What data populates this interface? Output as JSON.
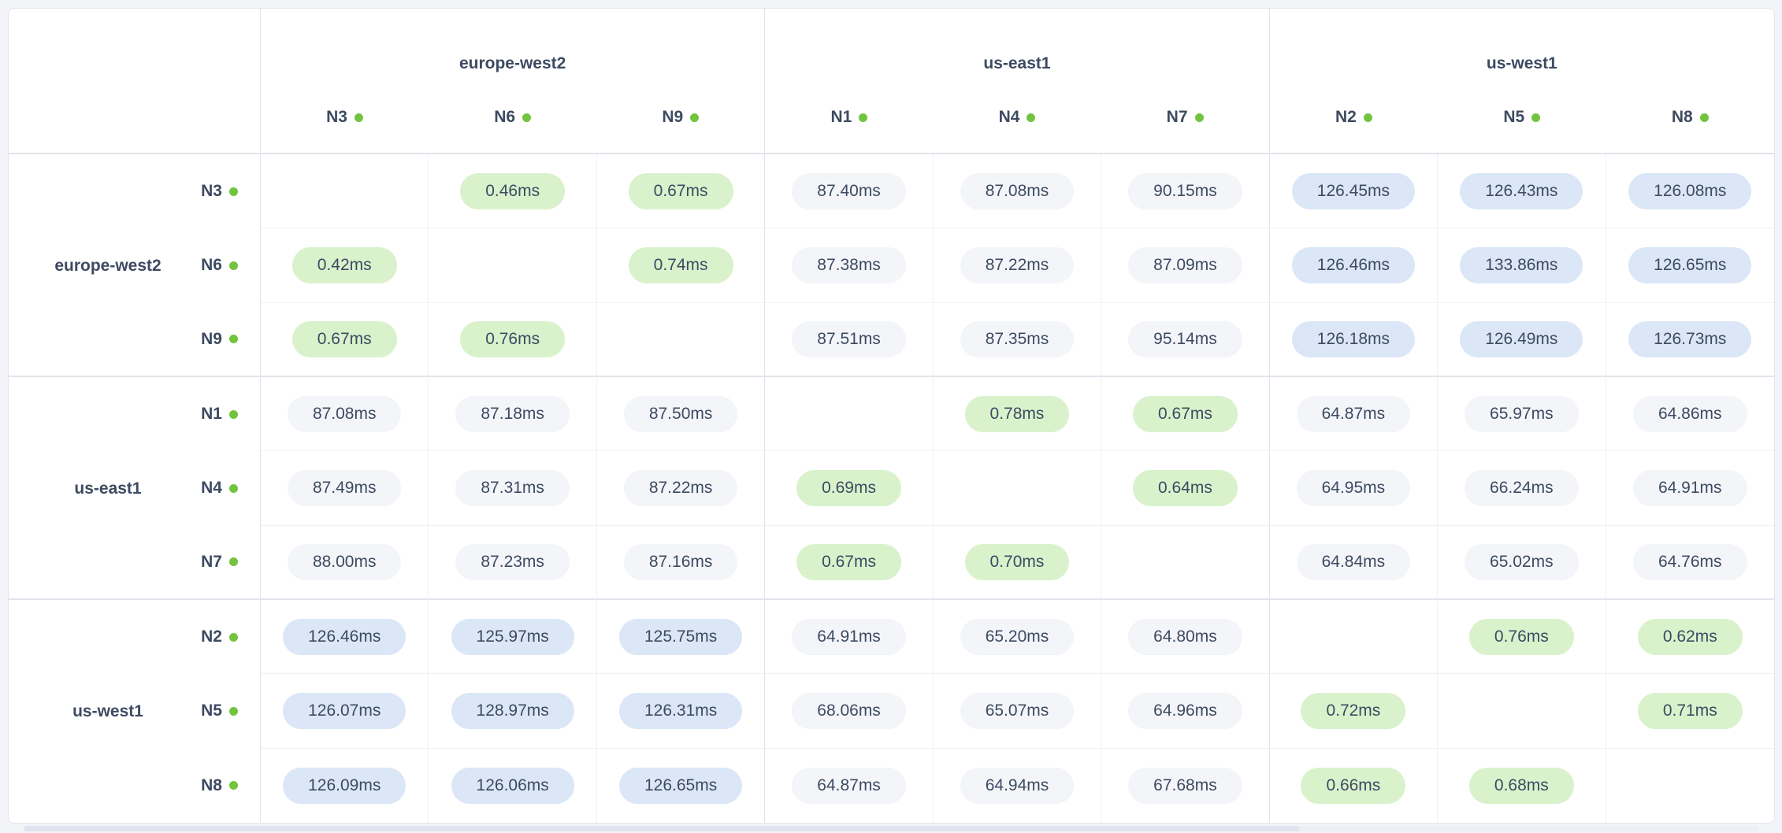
{
  "unit": "ms",
  "regions": [
    {
      "name": "europe-west2",
      "nodes": [
        "N3",
        "N6",
        "N9"
      ]
    },
    {
      "name": "us-east1",
      "nodes": [
        "N1",
        "N4",
        "N7"
      ]
    },
    {
      "name": "us-west1",
      "nodes": [
        "N2",
        "N5",
        "N8"
      ]
    }
  ],
  "icons": {
    "status_dot": "filled-circle"
  },
  "colors": {
    "page_bg": "#f3f4f8",
    "card_bg": "#ffffff",
    "border_light": "#f0f1f6",
    "border_group": "#e2e4ec",
    "text": "#3d4a61",
    "dot_green": "#72c43e",
    "pill_fast_bg": "#d9f2cc",
    "pill_medium_bg": "#f3f5f9",
    "pill_slow_bg": "#dbe7f7",
    "scrollbar_thumb": "#e1e4ee",
    "scrollbar_track": "#eef0f6"
  },
  "latency_tiers": {
    "fast_below_ms": 1,
    "medium_below_ms": 100
  },
  "matrix": {
    "row_order": [
      "N3",
      "N6",
      "N9",
      "N1",
      "N4",
      "N7",
      "N2",
      "N5",
      "N8"
    ],
    "col_order": [
      "N3",
      "N6",
      "N9",
      "N1",
      "N4",
      "N7",
      "N2",
      "N5",
      "N8"
    ],
    "cells": [
      [
        "",
        "0.46ms",
        "0.67ms",
        "87.40ms",
        "87.08ms",
        "90.15ms",
        "126.45ms",
        "126.43ms",
        "126.08ms"
      ],
      [
        "0.42ms",
        "",
        "0.74ms",
        "87.38ms",
        "87.22ms",
        "87.09ms",
        "126.46ms",
        "133.86ms",
        "126.65ms"
      ],
      [
        "0.67ms",
        "0.76ms",
        "",
        "87.51ms",
        "87.35ms",
        "95.14ms",
        "126.18ms",
        "126.49ms",
        "126.73ms"
      ],
      [
        "87.08ms",
        "87.18ms",
        "87.50ms",
        "",
        "0.78ms",
        "0.67ms",
        "64.87ms",
        "65.97ms",
        "64.86ms"
      ],
      [
        "87.49ms",
        "87.31ms",
        "87.22ms",
        "0.69ms",
        "",
        "0.64ms",
        "64.95ms",
        "66.24ms",
        "64.91ms"
      ],
      [
        "88.00ms",
        "87.23ms",
        "87.16ms",
        "0.67ms",
        "0.70ms",
        "",
        "64.84ms",
        "65.02ms",
        "64.76ms"
      ],
      [
        "126.46ms",
        "125.97ms",
        "125.75ms",
        "64.91ms",
        "65.20ms",
        "64.80ms",
        "",
        "0.76ms",
        "0.62ms"
      ],
      [
        "126.07ms",
        "128.97ms",
        "126.31ms",
        "68.06ms",
        "65.07ms",
        "64.96ms",
        "0.72ms",
        "",
        "0.71ms"
      ],
      [
        "126.09ms",
        "126.06ms",
        "126.65ms",
        "64.87ms",
        "64.94ms",
        "67.68ms",
        "0.66ms",
        "0.68ms",
        ""
      ]
    ]
  }
}
